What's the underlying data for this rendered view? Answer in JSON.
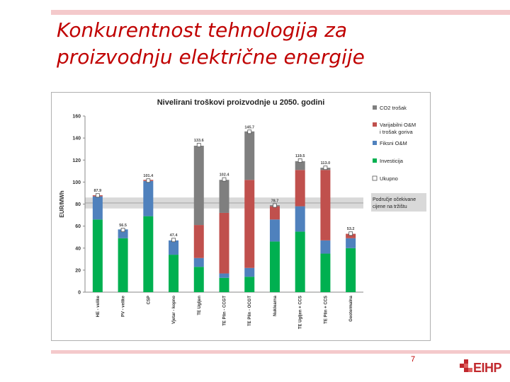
{
  "slide": {
    "title_line1": "Konkurentnost tehnologija za",
    "title_line2": "proizvodnju električne energije",
    "page_number": "7",
    "logo_text": "EIHP"
  },
  "colors": {
    "title": "#c00000",
    "decor_bar": "#f4c9cb",
    "co2": "#7f7f7f",
    "variable": "#c0504d",
    "fixed": "#4f81bd",
    "investment": "#00b050",
    "market_band": "#d9d9d9",
    "logo": "#c0282d"
  },
  "chart_data": {
    "type": "bar",
    "stacked": true,
    "title": "Nivelirani troškovi proizvodnje u 2050. godini",
    "ylabel": "EUR/MWh",
    "xlabel": "",
    "ylim": [
      0,
      160
    ],
    "yticks": [
      0,
      20,
      40,
      60,
      80,
      100,
      120,
      140,
      160
    ],
    "grid": false,
    "legend_position": "right",
    "categories": [
      "HE - velike",
      "PV - velike",
      "CSP",
      "Vjetar - kopno",
      "TE Ugljen",
      "TE Plin - CCGT",
      "TE Plin - OCGT",
      "Nuklearna",
      "TE Ugljen + CCS",
      "TE Plin + CCS",
      "Geotermalna"
    ],
    "series": [
      {
        "name": "Investicija",
        "color": "#00b050",
        "values": [
          66,
          49,
          69,
          34,
          23,
          13,
          14,
          46,
          55,
          35,
          40
        ]
      },
      {
        "name": "Fiksni O&M",
        "color": "#4f81bd",
        "values": [
          21,
          8,
          32,
          13,
          8,
          4,
          8,
          20,
          23,
          12,
          9
        ]
      },
      {
        "name": "Varijabilni O&M i trošak goriva",
        "color": "#c0504d",
        "values": [
          1,
          0,
          1,
          0,
          30,
          55,
          80,
          12,
          33,
          64,
          4
        ]
      },
      {
        "name": "CO2 trošak",
        "color": "#7f7f7f",
        "values": [
          0,
          0,
          0,
          0,
          72,
          30,
          44,
          1,
          8,
          2,
          0
        ]
      }
    ],
    "totals": {
      "name": "Ukupno",
      "values": [
        87.9,
        56.5,
        101.4,
        47.4,
        133.6,
        102.4,
        145.7,
        78.7,
        119.5,
        113.0,
        53.2
      ],
      "labels": [
        "87.9",
        "56.5",
        "101.4",
        "47.4",
        "133.6",
        "102.4",
        "145.7",
        "78.7",
        "119.5",
        "113.0",
        "53.2"
      ]
    },
    "market_band": {
      "label_line1": "Područje očekivane",
      "label_line2": "cijene na tržištu",
      "range": [
        76,
        86
      ],
      "center": 81
    }
  }
}
